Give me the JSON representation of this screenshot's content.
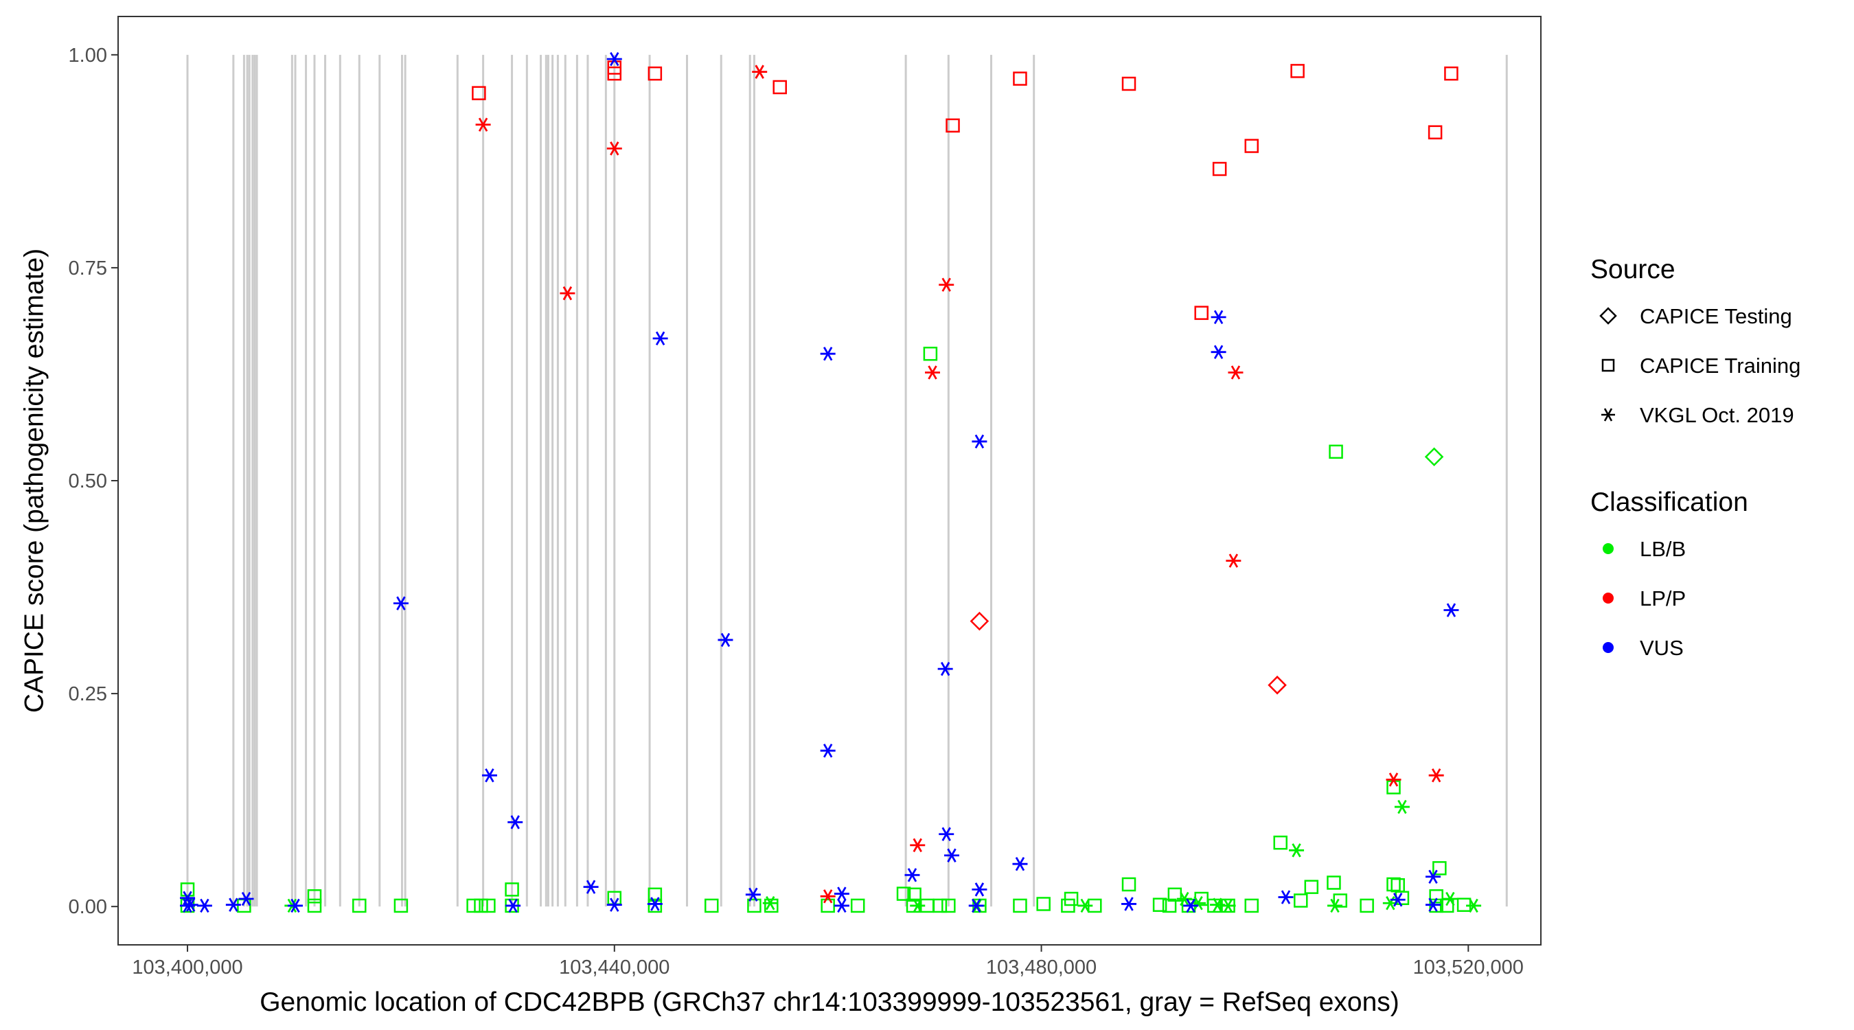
{
  "chart_data": {
    "type": "scatter",
    "xlabel": "Genomic location of CDC42BPB (GRCh37 chr14:103399999-103523561, gray = RefSeq exons)",
    "ylabel": "CAPICE score (pathogenicity estimate)",
    "xlim": [
      103393500,
      103526800
    ],
    "ylim": [
      -0.045,
      1.045
    ],
    "x_ticks": [
      103400000,
      103440000,
      103480000,
      103520000
    ],
    "x_tick_labels": [
      "103,400,000",
      "103,440,000",
      "103,480,000",
      "103,520,000"
    ],
    "y_ticks": [
      0,
      0.25,
      0.5,
      0.75,
      1
    ],
    "y_tick_labels": [
      "0.00",
      "0.25",
      "0.50",
      "0.75",
      "1.00"
    ],
    "grid": false,
    "legend_position": "right",
    "exon_shading": "gray vertical lines = RefSeq exons",
    "exons": [
      103400000,
      103404300,
      103405300,
      103405600,
      103405800,
      103406100,
      103406300,
      103406500,
      103409800,
      103410100,
      103411100,
      103411900,
      103412900,
      103414300,
      103416100,
      103418000,
      103420100,
      103420400,
      103425300,
      103427700,
      103430400,
      103431800,
      103433100,
      103433600,
      103433800,
      103434200,
      103434700,
      103435400,
      103436500,
      103437500,
      103439200,
      103440000,
      103443300,
      103446800,
      103450000,
      103452700,
      103453100,
      103467300,
      103471300,
      103475300,
      103479300,
      103523600
    ],
    "legends": [
      {
        "title": "Source",
        "entries": [
          {
            "label": "CAPICE Testing",
            "shape": "diamond"
          },
          {
            "label": "CAPICE Training",
            "shape": "square"
          },
          {
            "label": "VKGL Oct. 2019",
            "shape": "asterisk"
          }
        ]
      },
      {
        "title": "Classification",
        "entries": [
          {
            "label": "LB/B",
            "color": "#00ee00"
          },
          {
            "label": "LP/P",
            "color": "#ff0000"
          },
          {
            "label": "VUS",
            "color": "#0000ff"
          }
        ]
      }
    ],
    "colors": {
      "LB/B": "#00ee00",
      "LP/P": "#ff0000",
      "VUS": "#0000ff",
      "exon": "#cccccc"
    },
    "series": [
      {
        "source": "CAPICE Training",
        "classification": "LP/P",
        "points": [
          [
            103427300,
            0.955
          ],
          [
            103440000,
            0.978
          ],
          [
            103440000,
            0.985
          ],
          [
            103443800,
            0.978
          ],
          [
            103455500,
            0.962
          ],
          [
            103471700,
            0.917
          ],
          [
            103478000,
            0.972
          ],
          [
            103488200,
            0.966
          ],
          [
            103495000,
            0.697
          ],
          [
            103496700,
            0.866
          ],
          [
            103499700,
            0.893
          ],
          [
            103504000,
            0.981
          ],
          [
            103516900,
            0.909
          ],
          [
            103518400,
            0.978
          ]
        ]
      },
      {
        "source": "VKGL Oct. 2019",
        "classification": "LP/P",
        "points": [
          [
            103427700,
            0.918
          ],
          [
            103435600,
            0.72
          ],
          [
            103440000,
            0.89
          ],
          [
            103453600,
            0.98
          ],
          [
            103471100,
            0.73
          ],
          [
            103469800,
            0.627
          ],
          [
            103468400,
            0.072
          ],
          [
            103460000,
            0.012
          ],
          [
            103498200,
            0.627
          ],
          [
            103498000,
            0.406
          ],
          [
            103513000,
            0.149
          ],
          [
            103517000,
            0.154
          ]
        ]
      },
      {
        "source": "CAPICE Testing",
        "classification": "LP/P",
        "points": [
          [
            103474200,
            0.335
          ],
          [
            103502100,
            0.26
          ]
        ]
      },
      {
        "source": "VKGL Oct. 2019",
        "classification": "VUS",
        "points": [
          [
            103440000,
            0.995
          ],
          [
            103444300,
            0.667
          ],
          [
            103460000,
            0.649
          ],
          [
            103460000,
            0.183
          ],
          [
            103450400,
            0.313
          ],
          [
            103420000,
            0.356
          ],
          [
            103428300,
            0.154
          ],
          [
            103430700,
            0.099
          ],
          [
            103437800,
            0.023
          ],
          [
            103453000,
            0.014
          ],
          [
            103474200,
            0.546
          ],
          [
            103471000,
            0.279
          ],
          [
            103471100,
            0.085
          ],
          [
            103471600,
            0.06
          ],
          [
            103467900,
            0.037
          ],
          [
            103474200,
            0.02
          ],
          [
            103478000,
            0.05
          ],
          [
            103496600,
            0.692
          ],
          [
            103496600,
            0.651
          ],
          [
            103518400,
            0.348
          ],
          [
            103516700,
            0.035
          ],
          [
            103461300,
            0.015
          ],
          [
            103502900,
            0.011
          ],
          [
            103513400,
            0.008
          ],
          [
            103400000,
            0.01
          ],
          [
            103400000,
            0.001
          ],
          [
            103400300,
            0.002
          ],
          [
            103401600,
            0.001
          ],
          [
            103404300,
            0.002
          ],
          [
            103405500,
            0.009
          ],
          [
            103410100,
            0.001
          ],
          [
            103430500,
            0.001
          ],
          [
            103440000,
            0.002
          ],
          [
            103443800,
            0.003
          ],
          [
            103461300,
            0.001
          ],
          [
            103488200,
            0.003
          ],
          [
            103494000,
            0.001
          ],
          [
            103516700,
            0.002
          ],
          [
            103473900,
            0.001
          ]
        ]
      },
      {
        "source": "CAPICE Training",
        "classification": "LB/B",
        "points": [
          [
            103400000,
            0.02
          ],
          [
            103400000,
            0.001
          ],
          [
            103405300,
            0.001
          ],
          [
            103411900,
            0.012
          ],
          [
            103411900,
            0.001
          ],
          [
            103416100,
            0.001
          ],
          [
            103420000,
            0.001
          ],
          [
            103426800,
            0.001
          ],
          [
            103427500,
            0.001
          ],
          [
            103428200,
            0.001
          ],
          [
            103430400,
            0.02
          ],
          [
            103430400,
            0.001
          ],
          [
            103440000,
            0.01
          ],
          [
            103443800,
            0.014
          ],
          [
            103443800,
            0.001
          ],
          [
            103449100,
            0.001
          ],
          [
            103453100,
            0.001
          ],
          [
            103454700,
            0.001
          ],
          [
            103460000,
            0.001
          ],
          [
            103462800,
            0.001
          ],
          [
            103467100,
            0.015
          ],
          [
            103468100,
            0.014
          ],
          [
            103468000,
            0.001
          ],
          [
            103469300,
            0.001
          ],
          [
            103469600,
            0.649
          ],
          [
            103470500,
            0.001
          ],
          [
            103471300,
            0.001
          ],
          [
            103474200,
            0.001
          ],
          [
            103478000,
            0.001
          ],
          [
            103480200,
            0.003
          ],
          [
            103482800,
            0.009
          ],
          [
            103482500,
            0.001
          ],
          [
            103485000,
            0.001
          ],
          [
            103488200,
            0.026
          ],
          [
            103491100,
            0.002
          ],
          [
            103492000,
            0.001
          ],
          [
            103492500,
            0.014
          ],
          [
            103493800,
            0.001
          ],
          [
            103495000,
            0.009
          ],
          [
            103496200,
            0.001
          ],
          [
            103497500,
            0.001
          ],
          [
            103499700,
            0.001
          ],
          [
            103502400,
            0.075
          ],
          [
            103504300,
            0.007
          ],
          [
            103505300,
            0.023
          ],
          [
            103507400,
            0.028
          ],
          [
            103507600,
            0.534
          ],
          [
            103508000,
            0.007
          ],
          [
            103510500,
            0.001
          ],
          [
            103513000,
            0.026
          ],
          [
            103513400,
            0.025
          ],
          [
            103513000,
            0.14
          ],
          [
            103513800,
            0.01
          ],
          [
            103517300,
            0.045
          ],
          [
            103517000,
            0.012
          ],
          [
            103517000,
            0.001
          ],
          [
            103518000,
            0.001
          ],
          [
            103519600,
            0.002
          ]
        ]
      },
      {
        "source": "VKGL Oct. 2019",
        "classification": "LB/B",
        "points": [
          [
            103409800,
            0.001
          ],
          [
            103454600,
            0.004
          ],
          [
            103468400,
            0.001
          ],
          [
            103474000,
            0.001
          ],
          [
            103484100,
            0.001
          ],
          [
            103493400,
            0.009
          ],
          [
            103494700,
            0.004
          ],
          [
            103496500,
            0.002
          ],
          [
            103497500,
            0.001
          ],
          [
            103503900,
            0.066
          ],
          [
            103507500,
            0.001
          ],
          [
            103512700,
            0.004
          ],
          [
            103513800,
            0.117
          ],
          [
            103518300,
            0.009
          ],
          [
            103520500,
            0.001
          ]
        ]
      },
      {
        "source": "CAPICE Testing",
        "classification": "LB/B",
        "points": [
          [
            103516800,
            0.528
          ]
        ]
      }
    ]
  }
}
